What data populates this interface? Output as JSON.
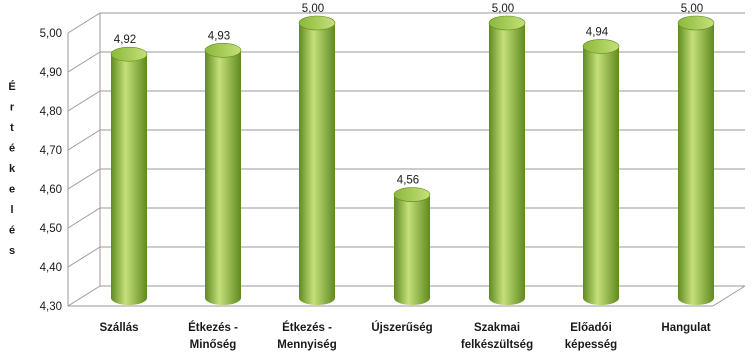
{
  "chart_data": {
    "type": "bar",
    "categories": [
      [
        "Szállás"
      ],
      [
        "Étkezés -",
        "Minőség"
      ],
      [
        "Étkezés -",
        "Mennyiség"
      ],
      [
        "Újszerűség"
      ],
      [
        "Szakmai",
        "felkészültség"
      ],
      [
        "Előadói",
        "képesség"
      ],
      [
        "Hangulat"
      ]
    ],
    "values": [
      4.92,
      4.93,
      5.0,
      4.56,
      5.0,
      4.94,
      5.0
    ],
    "value_labels": [
      "4,92",
      "4,93",
      "5,00",
      "4,56",
      "5,00",
      "4,94",
      "5,00"
    ],
    "ylabel": "Értékelés",
    "ylim": [
      4.3,
      5.0
    ],
    "yticks": [
      4.3,
      4.4,
      4.5,
      4.6,
      4.7,
      4.8,
      4.9,
      5.0
    ],
    "ytick_labels": [
      "4,30",
      "4,40",
      "4,50",
      "4,60",
      "4,70",
      "4,80",
      "4,90",
      "5,00"
    ],
    "grid": true,
    "bar_color": "#8bb83a",
    "bar_shade_color": "#5f8a1f",
    "bar_highlight_color": "#c5e07a"
  }
}
